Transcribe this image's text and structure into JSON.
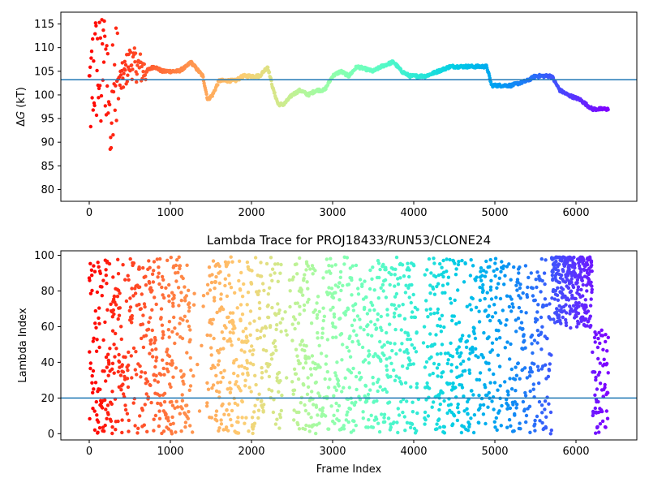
{
  "figure": {
    "background": "#ffffff"
  },
  "chart_data": [
    {
      "type": "scatter",
      "title": "",
      "xlabel": "",
      "ylabel": "ΔG (kT)",
      "ylabel_parts": {
        "delta": "Δ",
        "var": "G",
        "unit": " (kT)"
      },
      "xlim": [
        -350,
        6750
      ],
      "ylim": [
        77.5,
        117.5
      ],
      "xticks": [
        0,
        1000,
        2000,
        3000,
        4000,
        5000,
        6000
      ],
      "yticks": [
        80,
        85,
        90,
        95,
        100,
        105,
        110,
        115
      ],
      "hline": {
        "y": 103.2,
        "color": "#1f77b4"
      },
      "x_max": 6400,
      "colormap": "rainbow_r",
      "trace_keypoints": [
        [
          0,
          100
        ],
        [
          50,
          105
        ],
        [
          100,
          106
        ],
        [
          150,
          103
        ],
        [
          200,
          108
        ],
        [
          250,
          100
        ],
        [
          300,
          102
        ],
        [
          400,
          103
        ],
        [
          500,
          107
        ],
        [
          600,
          106
        ],
        [
          700,
          105
        ],
        [
          800,
          106
        ],
        [
          900,
          105
        ],
        [
          1000,
          105
        ],
        [
          1100,
          105
        ],
        [
          1200,
          106
        ],
        [
          1250,
          107
        ],
        [
          1300,
          106
        ],
        [
          1400,
          104
        ],
        [
          1460,
          99
        ],
        [
          1520,
          100
        ],
        [
          1600,
          103
        ],
        [
          1700,
          103
        ],
        [
          1800,
          103
        ],
        [
          1900,
          104
        ],
        [
          2000,
          104
        ],
        [
          2100,
          104
        ],
        [
          2200,
          106
        ],
        [
          2270,
          101
        ],
        [
          2330,
          98
        ],
        [
          2400,
          98
        ],
        [
          2500,
          100
        ],
        [
          2600,
          101
        ],
        [
          2700,
          100
        ],
        [
          2800,
          101
        ],
        [
          2900,
          101
        ],
        [
          3000,
          104
        ],
        [
          3100,
          105
        ],
        [
          3200,
          104
        ],
        [
          3300,
          106
        ],
        [
          3500,
          105
        ],
        [
          3600,
          106
        ],
        [
          3750,
          107
        ],
        [
          3850,
          105
        ],
        [
          3950,
          104
        ],
        [
          4050,
          104
        ],
        [
          4150,
          104
        ],
        [
          4300,
          105
        ],
        [
          4450,
          106
        ],
        [
          4600,
          106
        ],
        [
          4800,
          106
        ],
        [
          4900,
          106
        ],
        [
          4960,
          102
        ],
        [
          5050,
          102
        ],
        [
          5200,
          102
        ],
        [
          5400,
          103
        ],
        [
          5500,
          104
        ],
        [
          5600,
          104
        ],
        [
          5700,
          104
        ],
        [
          5800,
          101
        ],
        [
          5900,
          100
        ],
        [
          6050,
          99
        ],
        [
          6200,
          97
        ],
        [
          6300,
          97
        ],
        [
          6400,
          97
        ]
      ]
    },
    {
      "type": "scatter",
      "title": "Lambda Trace for PROJ18433/RUN53/CLONE24",
      "xlabel": "Frame Index",
      "ylabel": "Lambda Index",
      "xlim": [
        -350,
        6750
      ],
      "ylim": [
        -3.5,
        102.5
      ],
      "xticks": [
        0,
        1000,
        2000,
        3000,
        4000,
        5000,
        6000
      ],
      "yticks": [
        0,
        20,
        40,
        60,
        80,
        100
      ],
      "hline": {
        "y": 20,
        "color": "#1f77b4"
      },
      "x_max": 6400,
      "colormap": "rainbow_r",
      "point_count_approx": 6400,
      "dense_region": {
        "x": [
          5700,
          6200
        ],
        "y": [
          60,
          99
        ]
      },
      "sparse_gaps": [
        [
          1250,
          1450
        ],
        [
          2380,
          2500
        ],
        [
          4050,
          4130
        ],
        [
          5700,
          6200
        ]
      ]
    }
  ]
}
